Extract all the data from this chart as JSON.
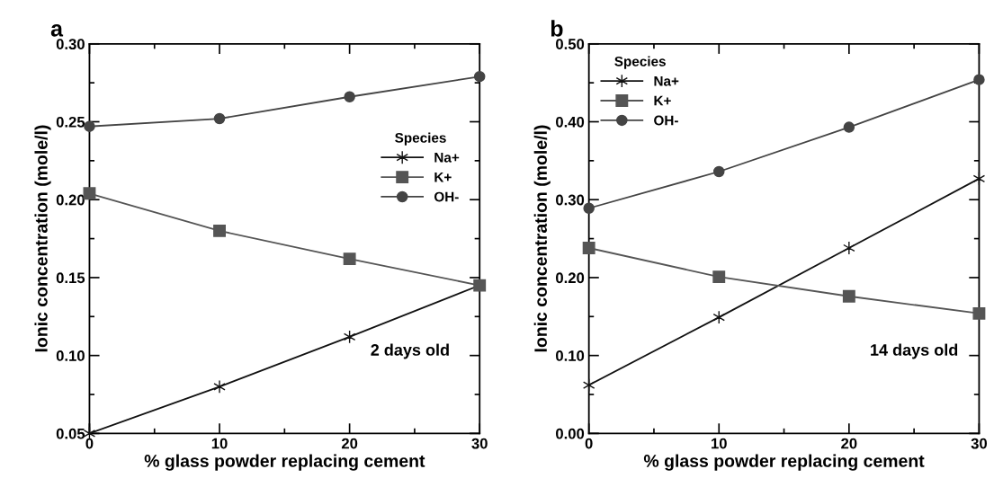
{
  "chart_data": [
    {
      "type": "line",
      "title": "a",
      "xlabel": "% glass powder replacing cement",
      "ylabel": "Ionic concentration (mole/l)",
      "legend_title": "Species",
      "legend": "right",
      "grid": false,
      "x": [
        0,
        10,
        20,
        30
      ],
      "xlim": [
        0,
        30
      ],
      "xticks": [
        0,
        10,
        20,
        30
      ],
      "ylim": [
        0.05,
        0.3
      ],
      "yticks": [
        {
          "value": 0.05,
          "label": "0.05"
        },
        {
          "value": 0.1,
          "label": "0.10"
        },
        {
          "value": 0.15,
          "label": "0.15"
        },
        {
          "value": 0.2,
          "label": "0.20"
        },
        {
          "value": 0.25,
          "label": "0.25"
        },
        {
          "value": 0.3,
          "label": "0.30"
        }
      ],
      "annotations": [
        "2 days old"
      ],
      "series": [
        {
          "name": "Na+",
          "color": "#111111",
          "marker": "cross",
          "values": [
            0.05,
            0.08,
            0.112,
            0.145
          ]
        },
        {
          "name": "K+",
          "color": "#555555",
          "marker": "square",
          "values": [
            0.204,
            0.18,
            0.162,
            0.145
          ]
        },
        {
          "name": "OH-",
          "color": "#444444",
          "marker": "circle",
          "values": [
            0.247,
            0.252,
            0.266,
            0.279
          ]
        }
      ]
    },
    {
      "type": "line",
      "title": "b",
      "xlabel": "% glass powder replacing cement",
      "ylabel": "Ionic concentration (mole/l)",
      "legend_title": "Species",
      "legend": "top left",
      "grid": false,
      "x": [
        0,
        10,
        20,
        30
      ],
      "xlim": [
        0,
        30
      ],
      "xticks": [
        0,
        10,
        20,
        30
      ],
      "ylim": [
        0.0,
        0.5
      ],
      "yticks": [
        {
          "value": 0.0,
          "label": "0.00"
        },
        {
          "value": 0.1,
          "label": "0.10"
        },
        {
          "value": 0.2,
          "label": "0.20"
        },
        {
          "value": 0.3,
          "label": "0.30"
        },
        {
          "value": 0.4,
          "label": "0.40"
        },
        {
          "value": 0.5,
          "label": "0.50"
        }
      ],
      "annotations": [
        "14 days old"
      ],
      "series": [
        {
          "name": "Na+",
          "color": "#111111",
          "marker": "cross",
          "values": [
            0.062,
            0.149,
            0.238,
            0.327
          ]
        },
        {
          "name": "K+",
          "color": "#555555",
          "marker": "square",
          "values": [
            0.238,
            0.201,
            0.176,
            0.154
          ]
        },
        {
          "name": "OH-",
          "color": "#444444",
          "marker": "circle",
          "values": [
            0.289,
            0.336,
            0.393,
            0.454
          ]
        }
      ]
    }
  ]
}
